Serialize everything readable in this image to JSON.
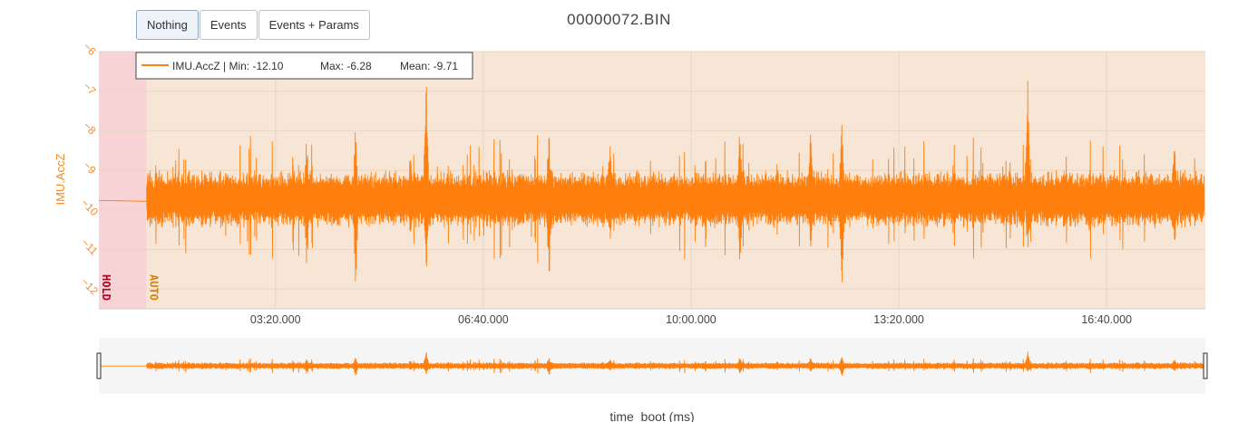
{
  "toolbar": {
    "buttons": [
      {
        "label": "Nothing",
        "active": true
      },
      {
        "label": "Events",
        "active": false
      },
      {
        "label": "Events + Params",
        "active": false
      }
    ]
  },
  "colors": {
    "series": "#ff7f0e",
    "hold_region": "#f8d3d6",
    "auto_region": "#f7e6d5",
    "hold_text": "#b00020",
    "auto_text": "#d4860b",
    "axis_text": "#f28b2c"
  },
  "chart_data": {
    "type": "line",
    "title": "00000072.BIN",
    "xlabel": "time_boot (ms)",
    "ylabel": "IMU.AccZ",
    "xlim": [
      30000,
      1095000
    ],
    "ylim": [
      -12.5,
      -6
    ],
    "x_ticks": [
      {
        "value": 200000,
        "label": "03:20.000"
      },
      {
        "value": 400000,
        "label": "06:40.000"
      },
      {
        "value": 600000,
        "label": "10:00.000"
      },
      {
        "value": 800000,
        "label": "13:20.000"
      },
      {
        "value": 1000000,
        "label": "16:40.000"
      }
    ],
    "y_ticks": [
      {
        "value": -6,
        "label": "−6"
      },
      {
        "value": -7,
        "label": "−7"
      },
      {
        "value": -8,
        "label": "−8"
      },
      {
        "value": -9,
        "label": "−9"
      },
      {
        "value": -10,
        "label": "−10"
      },
      {
        "value": -11,
        "label": "−11"
      },
      {
        "value": -12,
        "label": "−12"
      }
    ],
    "grid": true,
    "legend": {
      "placement": "top-left",
      "series_label": "IMU.AccZ | Min: -12.10",
      "max_label": "Max: -6.28",
      "mean_label": "Mean: -9.71"
    },
    "series": [
      {
        "name": "IMU.AccZ",
        "stats": {
          "min": -12.1,
          "max": -6.28,
          "mean": -9.71
        },
        "idle": {
          "x": [
            30000,
            76000
          ],
          "value": -9.76
        },
        "baseline": -9.73,
        "noise": 0.55,
        "spikes": [
          {
            "x": 230000,
            "min": -11.6,
            "max": -8.1
          },
          {
            "x": 277000,
            "min": -12.1,
            "max": -7.8
          },
          {
            "x": 330000,
            "min": -11.0,
            "max": -8.2
          },
          {
            "x": 345000,
            "min": -11.8,
            "max": -6.28
          },
          {
            "x": 463000,
            "min": -12.0,
            "max": -7.8
          },
          {
            "x": 522000,
            "min": -11.1,
            "max": -7.9
          },
          {
            "x": 647000,
            "min": -11.6,
            "max": -7.8
          },
          {
            "x": 715000,
            "min": -11.3,
            "max": -7.6
          },
          {
            "x": 745000,
            "min": -12.1,
            "max": -7.6
          },
          {
            "x": 924000,
            "min": -11.0,
            "max": -6.6
          },
          {
            "x": 1065000,
            "min": -11.1,
            "max": -8.1
          }
        ]
      }
    ],
    "modes": [
      {
        "label": "HOLD",
        "x_start": 30000,
        "x_end": 76000
      },
      {
        "label": "AUTO",
        "x_start": 76000,
        "x_end": 1095000
      }
    ],
    "rangeslider": true
  }
}
